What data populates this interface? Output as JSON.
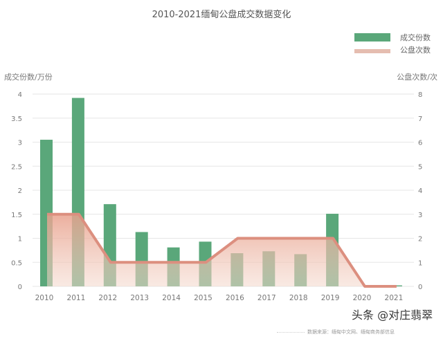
{
  "chart_data": {
    "type": "bar+area",
    "title": "2010-2021缅甸公盘成交数据变化",
    "categories": [
      "2010",
      "2011",
      "2012",
      "2013",
      "2014",
      "2015",
      "2016",
      "2017",
      "2018",
      "2019",
      "2020",
      "2021"
    ],
    "series": [
      {
        "name": "成交份数",
        "type": "bar",
        "axis": "left",
        "color": "#5aa77a",
        "values": [
          3.05,
          3.92,
          1.71,
          1.13,
          0.81,
          0.93,
          0.69,
          0.73,
          0.67,
          1.51,
          0,
          0.02
        ]
      },
      {
        "name": "公盘次数",
        "type": "area",
        "axis": "right",
        "color": "#dc8f7f",
        "values": [
          3,
          3,
          1,
          1,
          1,
          1,
          2,
          2,
          2,
          2,
          0,
          0
        ]
      }
    ],
    "ylabel_left": "成交份数/万份",
    "ylabel_right": "公盘次数/次",
    "ylim_left": [
      0,
      4
    ],
    "ylim_right": [
      0,
      8
    ],
    "yticks_left": [
      "0",
      "0.5",
      "1",
      "1.5",
      "2",
      "2.5",
      "3",
      "3.5",
      "4"
    ],
    "yticks_right": [
      "0",
      "1",
      "2",
      "3",
      "4",
      "5",
      "6",
      "7",
      "8"
    ],
    "grid": true,
    "legend_position": "top-right"
  },
  "source": "数据来源：缅甸中文网、缅甸商务部信息",
  "watermark": "头条 @对庄翡翠"
}
